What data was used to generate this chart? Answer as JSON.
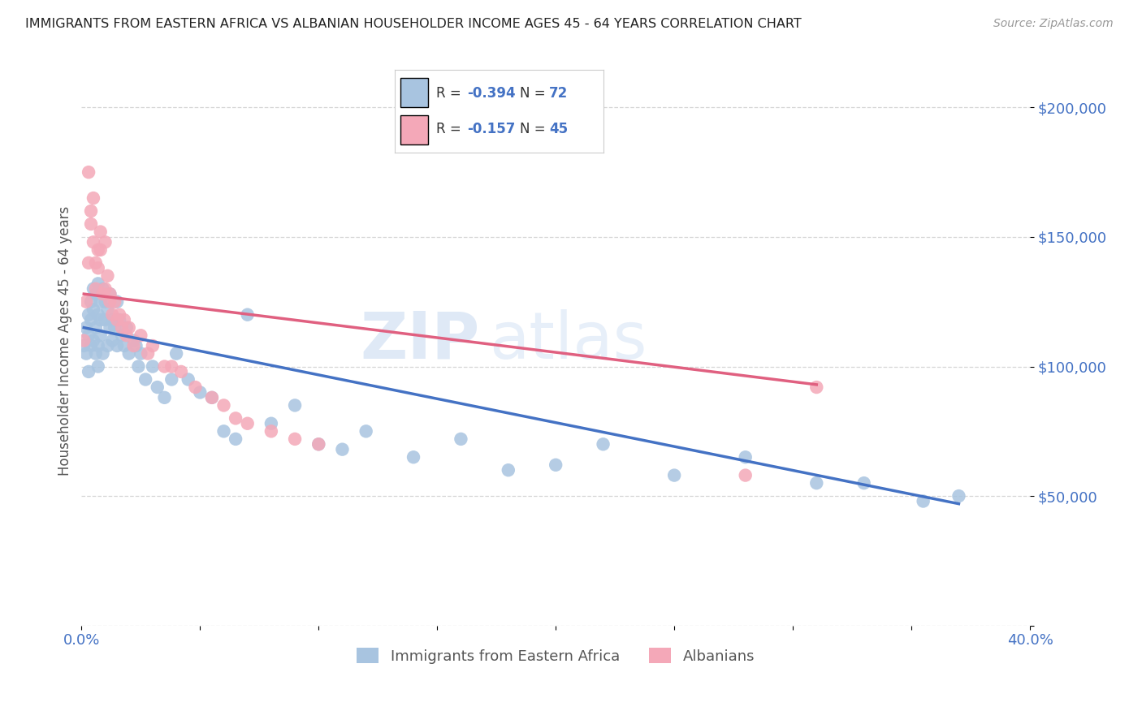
{
  "title": "IMMIGRANTS FROM EASTERN AFRICA VS ALBANIAN HOUSEHOLDER INCOME AGES 45 - 64 YEARS CORRELATION CHART",
  "source": "Source: ZipAtlas.com",
  "ylabel": "Householder Income Ages 45 - 64 years",
  "xlim": [
    0.0,
    0.4
  ],
  "ylim": [
    0,
    220000
  ],
  "yticks": [
    0,
    50000,
    100000,
    150000,
    200000
  ],
  "ytick_labels": [
    "",
    "$50,000",
    "$100,000",
    "$150,000",
    "$200,000"
  ],
  "xticks": [
    0.0,
    0.05,
    0.1,
    0.15,
    0.2,
    0.25,
    0.3,
    0.35,
    0.4
  ],
  "xtick_labels": [
    "0.0%",
    "",
    "",
    "",
    "",
    "",
    "",
    "",
    "40.0%"
  ],
  "blue_color": "#a8c4e0",
  "pink_color": "#f4a8b8",
  "line_blue": "#4472c4",
  "line_pink": "#e06080",
  "watermark_zip": "ZIP",
  "watermark_atlas": "atlas",
  "title_color": "#222222",
  "axis_label_color": "#555555",
  "tick_color": "#4472c4",
  "blue_scatter_x": [
    0.001,
    0.002,
    0.002,
    0.003,
    0.003,
    0.003,
    0.004,
    0.004,
    0.004,
    0.005,
    0.005,
    0.005,
    0.006,
    0.006,
    0.006,
    0.007,
    0.007,
    0.007,
    0.007,
    0.008,
    0.008,
    0.008,
    0.009,
    0.009,
    0.01,
    0.01,
    0.011,
    0.011,
    0.012,
    0.012,
    0.013,
    0.013,
    0.014,
    0.015,
    0.015,
    0.016,
    0.017,
    0.018,
    0.019,
    0.02,
    0.022,
    0.023,
    0.024,
    0.025,
    0.027,
    0.03,
    0.032,
    0.035,
    0.038,
    0.04,
    0.045,
    0.05,
    0.055,
    0.06,
    0.065,
    0.07,
    0.08,
    0.09,
    0.1,
    0.11,
    0.12,
    0.14,
    0.16,
    0.18,
    0.2,
    0.22,
    0.25,
    0.28,
    0.31,
    0.33,
    0.355,
    0.37
  ],
  "blue_scatter_y": [
    108000,
    115000,
    105000,
    120000,
    98000,
    112000,
    118000,
    108000,
    125000,
    130000,
    110000,
    122000,
    128000,
    115000,
    105000,
    132000,
    120000,
    108000,
    100000,
    125000,
    118000,
    112000,
    130000,
    105000,
    125000,
    118000,
    122000,
    108000,
    115000,
    128000,
    118000,
    110000,
    115000,
    125000,
    108000,
    118000,
    112000,
    108000,
    115000,
    105000,
    110000,
    108000,
    100000,
    105000,
    95000,
    100000,
    92000,
    88000,
    95000,
    105000,
    95000,
    90000,
    88000,
    75000,
    72000,
    120000,
    78000,
    85000,
    70000,
    68000,
    75000,
    65000,
    72000,
    60000,
    62000,
    70000,
    58000,
    65000,
    55000,
    55000,
    48000,
    50000
  ],
  "pink_scatter_x": [
    0.001,
    0.002,
    0.003,
    0.003,
    0.004,
    0.004,
    0.005,
    0.005,
    0.006,
    0.006,
    0.007,
    0.007,
    0.008,
    0.008,
    0.009,
    0.01,
    0.01,
    0.011,
    0.012,
    0.012,
    0.013,
    0.014,
    0.015,
    0.016,
    0.017,
    0.018,
    0.019,
    0.02,
    0.022,
    0.025,
    0.028,
    0.03,
    0.035,
    0.038,
    0.042,
    0.048,
    0.055,
    0.06,
    0.065,
    0.07,
    0.08,
    0.09,
    0.1,
    0.28,
    0.31
  ],
  "pink_scatter_y": [
    110000,
    125000,
    175000,
    140000,
    155000,
    160000,
    148000,
    165000,
    140000,
    130000,
    145000,
    138000,
    152000,
    145000,
    128000,
    148000,
    130000,
    135000,
    128000,
    125000,
    120000,
    125000,
    118000,
    120000,
    115000,
    118000,
    112000,
    115000,
    108000,
    112000,
    105000,
    108000,
    100000,
    100000,
    98000,
    92000,
    88000,
    85000,
    80000,
    78000,
    75000,
    72000,
    70000,
    58000,
    92000
  ],
  "blue_line_x": [
    0.001,
    0.37
  ],
  "blue_line_y": [
    115000,
    47000
  ],
  "pink_line_x": [
    0.001,
    0.31
  ],
  "pink_line_y": [
    128000,
    93000
  ]
}
